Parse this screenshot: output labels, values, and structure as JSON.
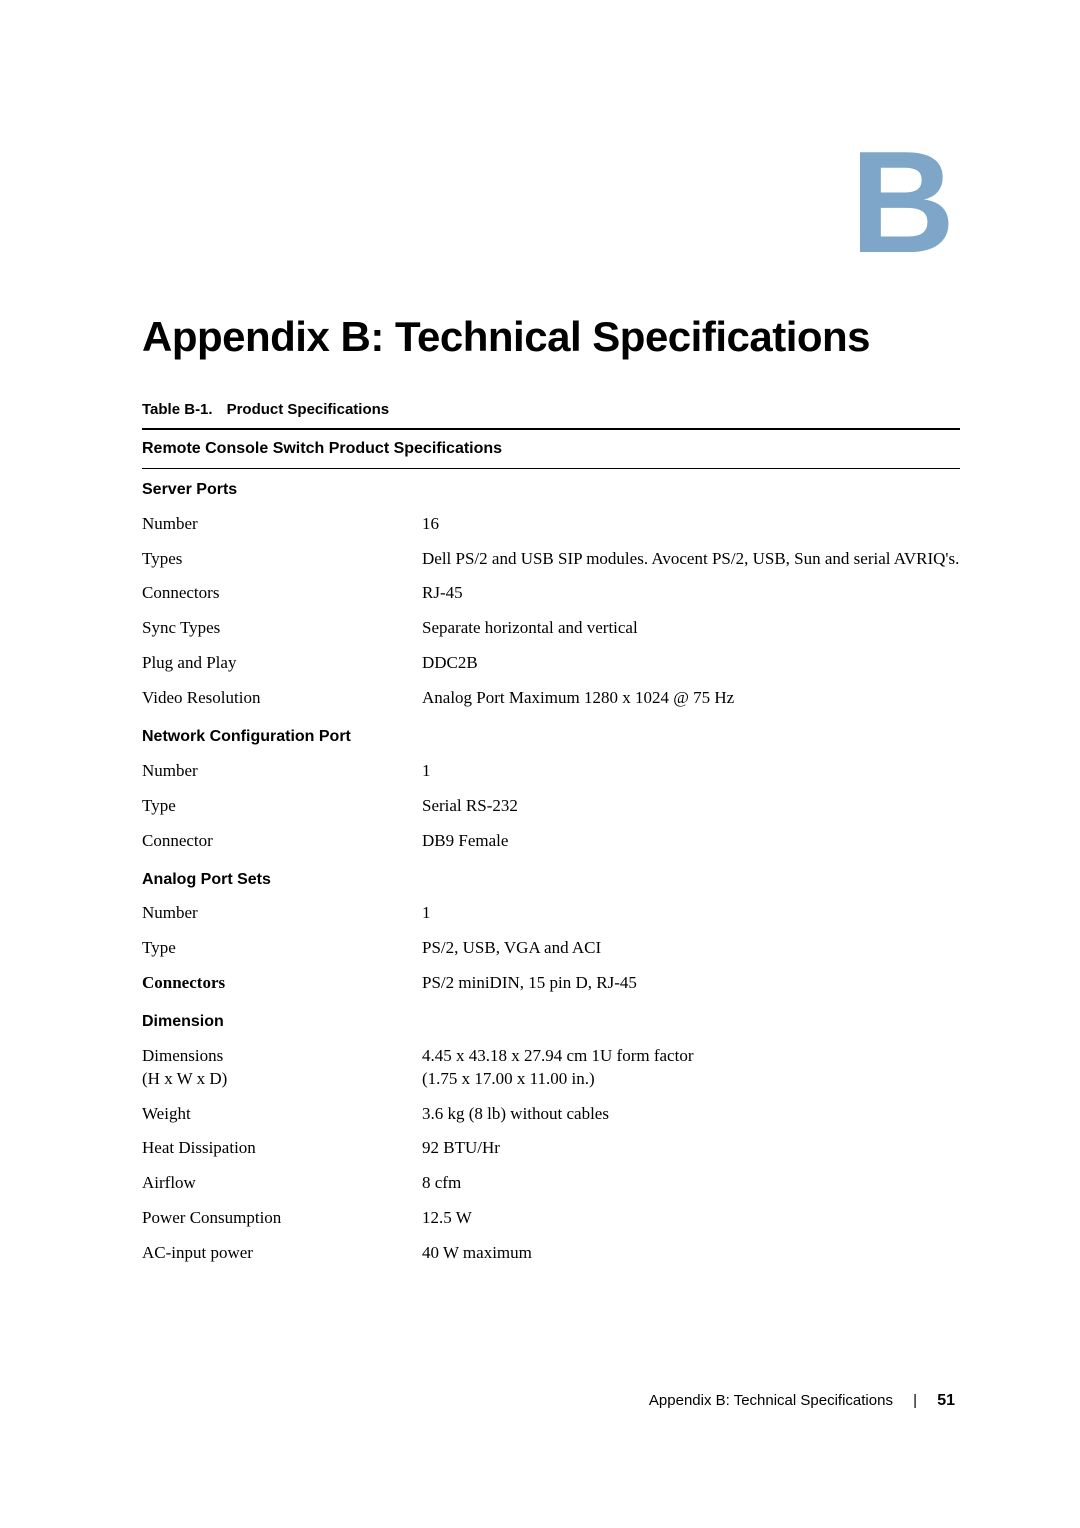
{
  "appendix_letter": "B",
  "main_heading": "Appendix B: Technical Specifications",
  "table_caption_prefix": "Table B-1.",
  "table_caption_title": "Product Specifications",
  "table_header": "Remote Console Switch Product Specifications",
  "sections": {
    "server_ports": {
      "title": "Server Ports",
      "rows": [
        {
          "label": "Number",
          "value": "16"
        },
        {
          "label": "Types",
          "value": "Dell PS/2 and USB SIP modules. Avocent PS/2, USB, Sun and serial AVRIQ's."
        },
        {
          "label": "Connectors",
          "value": "RJ-45"
        },
        {
          "label": "Sync Types",
          "value": "Separate horizontal and vertical"
        },
        {
          "label": "Plug and Play",
          "value": "DDC2B"
        },
        {
          "label": "Video Resolution",
          "value": "Analog Port Maximum 1280 x 1024 @ 75 Hz"
        }
      ]
    },
    "network_config": {
      "title": "Network Configuration Port",
      "rows": [
        {
          "label": "Number",
          "value": "1"
        },
        {
          "label": "Type",
          "value": "Serial RS-232"
        },
        {
          "label": "Connector",
          "value": "DB9 Female"
        }
      ]
    },
    "analog_port": {
      "title": "Analog Port Sets",
      "rows": [
        {
          "label": "Number",
          "value": "1"
        },
        {
          "label": "Type",
          "value": "PS/2, USB, VGA and ACI"
        },
        {
          "label": "Connectors",
          "label_bold": true,
          "value": "PS/2 miniDIN, 15 pin D, RJ-45"
        }
      ]
    },
    "dimension": {
      "title": "Dimension",
      "rows": [
        {
          "label": "Dimensions\n(H x W x D)",
          "value": "4.45 x 43.18 x 27.94 cm 1U form factor\n(1.75 x 17.00 x 11.00 in.)"
        },
        {
          "label": "Weight",
          "value": "3.6 kg (8 lb) without cables"
        },
        {
          "label": "Heat Dissipation",
          "value": "92 BTU/Hr"
        },
        {
          "label": "Airflow",
          "value": "8 cfm"
        },
        {
          "label": "Power Consumption",
          "value": "12.5 W"
        },
        {
          "label": "AC-input power",
          "value": "40 W maximum"
        }
      ]
    }
  },
  "footer_text": "Appendix B: Technical Specifications",
  "page_number": "51",
  "colors": {
    "appendix_letter": "#7da6c9",
    "text": "#000000",
    "background": "#ffffff"
  }
}
